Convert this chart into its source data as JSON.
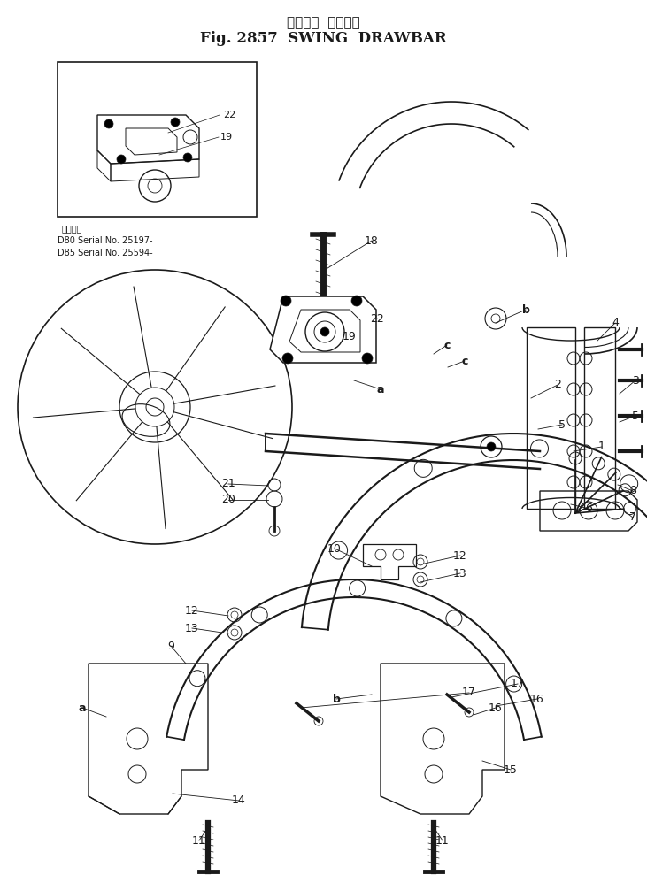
{
  "title_japanese": "スイング  ドローバ",
  "title_english": "Fig. 2857  SWING  DRAWBAR",
  "bg_color": "#ffffff",
  "line_color": "#1a1a1a",
  "figure_width": 7.31,
  "figure_height": 9.89,
  "dpi": 100,
  "inset_caption_line1": "適用号機",
  "inset_caption_line2": "D80 Serial No. 25197-",
  "inset_caption_line3": "D85 Serial No. 25594-"
}
